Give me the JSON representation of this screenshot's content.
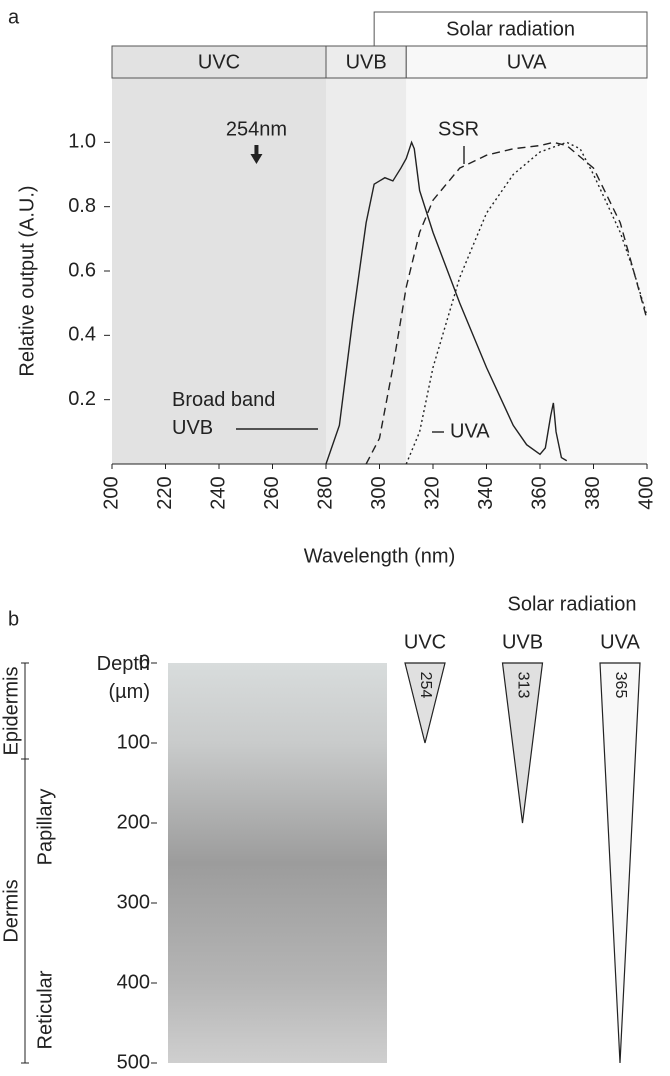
{
  "chart_data": [
    {
      "type": "line",
      "panel": "a",
      "bands": [
        {
          "label": "UVC",
          "range": [
            200,
            280
          ],
          "color": "#e2e2e2"
        },
        {
          "label": "UVB",
          "range": [
            280,
            310
          ],
          "color": "#ececec"
        },
        {
          "label": "UVA",
          "range": [
            310,
            400
          ],
          "color": "#f8f8f8"
        }
      ],
      "band_group": {
        "label": "Solar radiation",
        "range": [
          298,
          400
        ]
      },
      "xlabel": "Wavelength (nm)",
      "ylabel": "Relative output (A.U.)",
      "xlim": [
        200,
        400
      ],
      "ylim": [
        0,
        1.2
      ],
      "xticks": [
        200,
        220,
        240,
        260,
        280,
        300,
        320,
        340,
        360,
        380,
        400
      ],
      "yticks": [
        0.2,
        0.4,
        0.6,
        0.8,
        {
          "value": 1,
          "label": "1.0"
        }
      ],
      "annotation": {
        "text": "254nm",
        "x": 254
      },
      "series": [
        {
          "name": "Broad band UVB",
          "color": "#222",
          "dash": "solid",
          "x": [
            280,
            285,
            290,
            295,
            298,
            300,
            302,
            305,
            308,
            310,
            312,
            313,
            315,
            320,
            330,
            340,
            350,
            355,
            360,
            362,
            364,
            365,
            366,
            368,
            370
          ],
          "values": [
            0,
            0.12,
            0.45,
            0.75,
            0.87,
            0.88,
            0.89,
            0.88,
            0.92,
            0.95,
            1.0,
            0.98,
            0.85,
            0.72,
            0.5,
            0.3,
            0.12,
            0.06,
            0.03,
            0.05,
            0.15,
            0.19,
            0.1,
            0.02,
            0.01
          ]
        },
        {
          "name": "SSR",
          "color": "#222",
          "dash": "dashed",
          "x": [
            295,
            300,
            305,
            310,
            315,
            320,
            330,
            340,
            350,
            360,
            365,
            370,
            380,
            390,
            395,
            400
          ],
          "values": [
            0,
            0.08,
            0.3,
            0.55,
            0.72,
            0.82,
            0.92,
            0.96,
            0.98,
            0.99,
            1.0,
            0.99,
            0.92,
            0.75,
            0.6,
            0.45
          ]
        },
        {
          "name": "UVA",
          "color": "#222",
          "dash": "dotted",
          "x": [
            310,
            315,
            320,
            330,
            340,
            350,
            360,
            370,
            375,
            380,
            390,
            395,
            400
          ],
          "values": [
            0,
            0.1,
            0.3,
            0.58,
            0.78,
            0.9,
            0.97,
            1.0,
            0.98,
            0.9,
            0.72,
            0.6,
            0.46
          ]
        }
      ]
    },
    {
      "type": "penetration",
      "panel": "b",
      "ylabel": "Depth (µm)",
      "ylim": [
        0,
        500
      ],
      "yticks": [
        0,
        100,
        200,
        300,
        400,
        500
      ],
      "layers": [
        {
          "label": "Epidermis",
          "range": [
            0,
            120
          ]
        },
        {
          "label": "Dermis",
          "range": [
            120,
            500
          ]
        }
      ],
      "sublayers": [
        "Papillary",
        "Reticular"
      ],
      "group_label": "Solar radiation",
      "series": [
        {
          "name": "UVC",
          "wavelength": 254,
          "value": 100,
          "color": "#e0e0e0"
        },
        {
          "name": "UVB",
          "wavelength": 313,
          "value": 200,
          "color": "#e0e0e0"
        },
        {
          "name": "UVA",
          "wavelength": 365,
          "value": 500,
          "color": "#f8f8f8"
        }
      ]
    }
  ]
}
